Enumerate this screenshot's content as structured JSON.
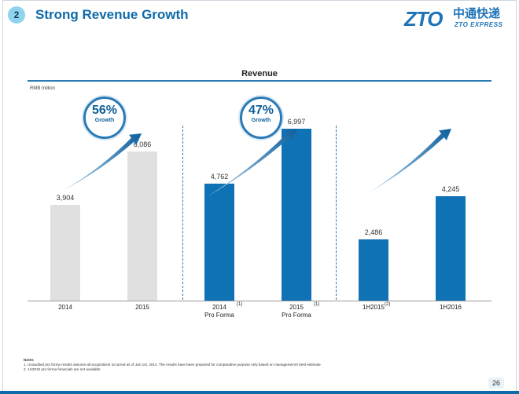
{
  "slide": {
    "number": "2",
    "title": "Strong Revenue Growth",
    "page_number": "26"
  },
  "logo": {
    "mark": "ZTO",
    "cn": "中通快递",
    "en": "ZTO EXPRESS"
  },
  "chart_data": {
    "type": "bar",
    "title": "Revenue",
    "units": "RMB million",
    "ylim": [
      0,
      8000
    ],
    "grid": false,
    "categories": [
      "2014",
      "2015",
      "2014 Pro Forma",
      "2015 Pro Forma",
      "1H2015",
      "1H2016"
    ],
    "tick_labels": [
      {
        "line1": "2014",
        "line2": "",
        "footnote": ""
      },
      {
        "line1": "2015",
        "line2": "",
        "footnote": ""
      },
      {
        "line1": "2014",
        "line2": "Pro Forma",
        "footnote": "(1)"
      },
      {
        "line1": "2015",
        "line2": "Pro Forma",
        "footnote": "(1)"
      },
      {
        "line1": "1H2015",
        "line2": "",
        "footnote": "(2)"
      },
      {
        "line1": "1H2016",
        "line2": "",
        "footnote": ""
      }
    ],
    "values": [
      3904,
      6086,
      4762,
      6997,
      2486,
      4245
    ],
    "value_labels": [
      "3,904",
      "6,086",
      "4,762",
      "6,997",
      "2,486",
      "4,245"
    ],
    "bar_colors": [
      "#e0e0e0",
      "#e0e0e0",
      "#0f72b5",
      "#0f72b5",
      "#0f72b5",
      "#0f72b5"
    ],
    "groups": [
      {
        "growth_pct": "56%",
        "growth_word": "Growth"
      },
      {
        "growth_pct": "47%",
        "growth_word": "Growth"
      },
      {
        "growth_pct": "",
        "growth_word": ""
      }
    ]
  },
  "notes": {
    "heading": "Notes",
    "items": [
      "1.   Unaudited pro forma results assume all acquisitions occurred as of Jan 1st, 2014. The results have been prepared for comparative purpose only based on management's best estimate",
      "2.   1H2015 pro forma financials are not available"
    ]
  },
  "colors": {
    "accent": "#0e6aa8",
    "bar_blue": "#0f72b5",
    "bar_grey": "#e0e0e0"
  }
}
